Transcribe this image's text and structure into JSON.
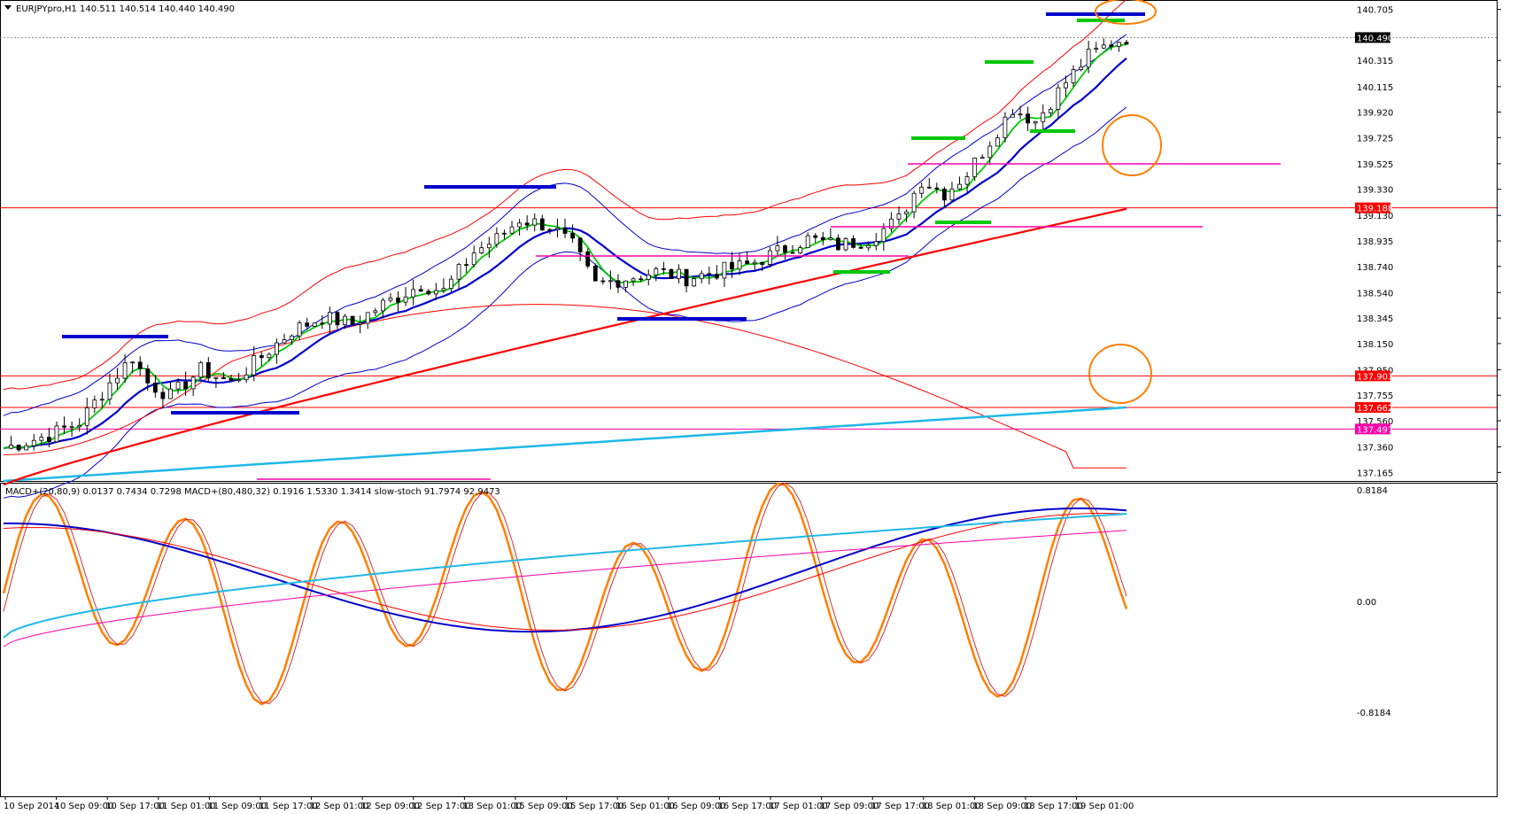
{
  "header": {
    "symbol_line": "EURJPYpro,H1  140.511 140.514 140.440 140.490",
    "indicator_line": "MACD+(20,80,9) 0.0137 0.7434 0.7298   MACD+(80,480,32) 0.1916 1.5330 1.3414   slow-stoch 91.7974 92.9473"
  },
  "colors": {
    "bull": "#ffffff",
    "bear": "#000000",
    "green": "#00c800",
    "blue": "#0000cc",
    "red": "#ff0000",
    "cyan": "#1fb8e8",
    "magenta": "#ff00aa",
    "orange": "#ff7f00",
    "price_tag": "#ff0000",
    "pink_tag": "#ff00aa"
  },
  "chart_data": [
    {
      "type": "candlestick",
      "price_axis": {
        "range": [
          137.12,
          140.75
        ],
        "ticks": [
          "140.705",
          "140.315",
          "140.115",
          "139.920",
          "139.725",
          "139.525",
          "139.330",
          "139.130",
          "138.935",
          "138.740",
          "138.540",
          "138.345",
          "138.150",
          "137.950",
          "137.755",
          "137.560",
          "137.360",
          "137.165"
        ],
        "tags": [
          {
            "value": "140.490",
            "style": "current"
          },
          {
            "value": "139.188",
            "style": "red"
          },
          {
            "value": "137.903",
            "style": "red"
          },
          {
            "value": "137.662",
            "style": "red"
          },
          {
            "value": "137.497",
            "style": "pink"
          }
        ]
      },
      "time_axis": {
        "labels": [
          "10 Sep 2014",
          "10 Sep 09:00",
          "10 Sep 17:00",
          "11 Sep 01:00",
          "11 Sep 09:00",
          "11 Sep 17:00",
          "12 Sep 01:00",
          "12 Sep 09:00",
          "12 Sep 17:00",
          "13 Sep 01:00",
          "15 Sep 09:00",
          "15 Sep 17:00",
          "16 Sep 01:00",
          "16 Sep 09:00",
          "16 Sep 17:00",
          "17 Sep 01:00",
          "17 Sep 09:00",
          "17 Sep 17:00",
          "18 Sep 01:00",
          "18 Sep 09:00",
          "18 Sep 17:00",
          "19 Sep 01:00"
        ]
      },
      "price_path": [
        [
          0,
          137.35
        ],
        [
          6,
          137.45
        ],
        [
          10,
          137.55
        ],
        [
          14,
          137.85
        ],
        [
          17,
          138.05
        ],
        [
          19,
          137.85
        ],
        [
          22,
          137.75
        ],
        [
          26,
          137.95
        ],
        [
          30,
          137.85
        ],
        [
          34,
          138.05
        ],
        [
          38,
          138.25
        ],
        [
          42,
          138.35
        ],
        [
          46,
          138.3
        ],
        [
          50,
          138.45
        ],
        [
          55,
          138.6
        ],
        [
          58,
          138.55
        ],
        [
          62,
          138.85
        ],
        [
          65,
          138.95
        ],
        [
          68,
          139.1
        ],
        [
          72,
          139.05
        ],
        [
          75,
          138.9
        ],
        [
          78,
          138.6
        ],
        [
          82,
          138.65
        ],
        [
          86,
          138.7
        ],
        [
          90,
          138.65
        ],
        [
          94,
          138.7
        ],
        [
          98,
          138.75
        ],
        [
          102,
          138.85
        ],
        [
          106,
          138.95
        ],
        [
          110,
          138.9
        ],
        [
          114,
          138.95
        ],
        [
          118,
          139.1
        ],
        [
          121,
          139.4
        ],
        [
          124,
          139.3
        ],
        [
          127,
          139.45
        ],
        [
          130,
          139.7
        ],
        [
          133,
          139.95
        ],
        [
          136,
          139.85
        ],
        [
          140,
          140.15
        ],
        [
          143,
          140.35
        ],
        [
          146,
          140.45
        ],
        [
          148,
          140.49
        ]
      ],
      "overlays": {
        "horizontal_levels": [
          139.188,
          137.903,
          137.662,
          137.497
        ]
      }
    },
    {
      "type": "oscillator",
      "panel_ticks": [
        "0.8184",
        "0.00",
        "-0.8184"
      ]
    }
  ]
}
